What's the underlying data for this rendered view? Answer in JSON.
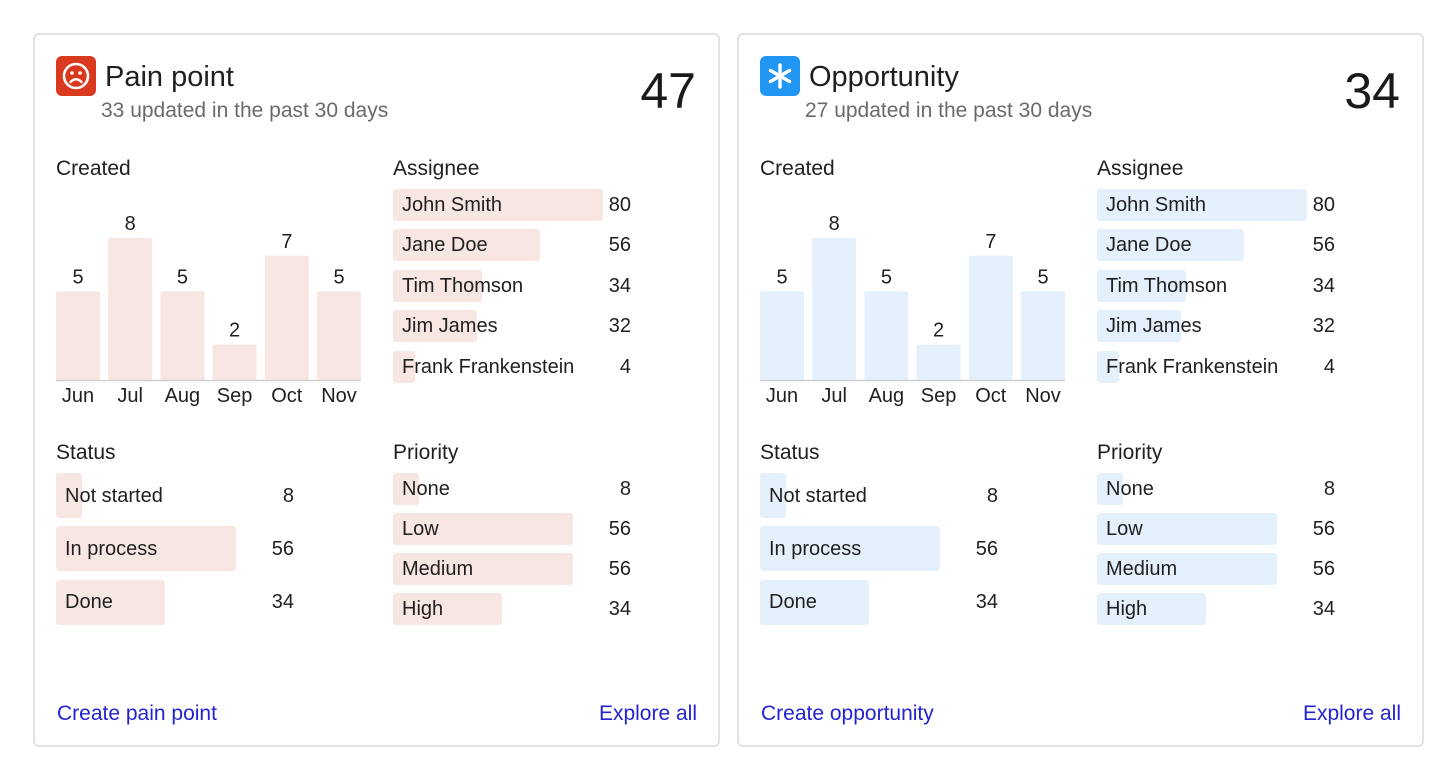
{
  "colors": {
    "pain_accent": "#d93a1f",
    "pain_bar": "#f8e6e3",
    "opp_accent": "#2196f3",
    "opp_bar": "#e4f1fd",
    "link": "#2323d1"
  },
  "cards": [
    {
      "id": "pain",
      "icon": "sad-face-icon",
      "title": "Pain point",
      "subtitle": "33 updated in the past 30 days",
      "total": "47",
      "created_label": "Created",
      "assignee_label": "Assignee",
      "status_label": "Status",
      "priority_label": "Priority",
      "chart_data": {
        "type": "bar",
        "title": "Created",
        "categories": [
          "Jun",
          "Jul",
          "Aug",
          "Sep",
          "Oct",
          "Nov"
        ],
        "values": [
          5,
          8,
          5,
          2,
          7,
          5
        ],
        "value_labels": [
          "5",
          "8",
          "5",
          "2",
          "7",
          "5"
        ],
        "ylim": [
          0,
          8
        ]
      },
      "assignees": [
        {
          "name": "John Smith",
          "count": "80",
          "value": 80
        },
        {
          "name": "Jane Doe",
          "count": "56",
          "value": 56
        },
        {
          "name": "Tim Thomson",
          "count": "34",
          "value": 34
        },
        {
          "name": "Jim James",
          "count": "32",
          "value": 32
        },
        {
          "name": "Frank Frankenstein",
          "count": "4",
          "value": 4
        }
      ],
      "statuses": [
        {
          "name": "Not started",
          "count": "8",
          "value": 8
        },
        {
          "name": "In process",
          "count": "56",
          "value": 56
        },
        {
          "name": "Done",
          "count": "34",
          "value": 34
        }
      ],
      "priorities": [
        {
          "name": "None",
          "count": "8",
          "value": 8
        },
        {
          "name": "Low",
          "count": "56",
          "value": 56
        },
        {
          "name": "Medium",
          "count": "56",
          "value": 56
        },
        {
          "name": "High",
          "count": "34",
          "value": 34
        }
      ],
      "create_label": "Create pain point",
      "explore_label": "Explore all"
    },
    {
      "id": "opp",
      "icon": "asterisk-icon",
      "title": "Opportunity",
      "subtitle": "27 updated in the past 30 days",
      "total": "34",
      "created_label": "Created",
      "assignee_label": "Assignee",
      "status_label": "Status",
      "priority_label": "Priority",
      "chart_data": {
        "type": "bar",
        "title": "Created",
        "categories": [
          "Jun",
          "Jul",
          "Aug",
          "Sep",
          "Oct",
          "Nov"
        ],
        "values": [
          5,
          8,
          5,
          2,
          7,
          5
        ],
        "value_labels": [
          "5",
          "8",
          "5",
          "2",
          "7",
          "5"
        ],
        "ylim": [
          0,
          8
        ]
      },
      "assignees": [
        {
          "name": "John Smith",
          "count": "80",
          "value": 80
        },
        {
          "name": "Jane Doe",
          "count": "56",
          "value": 56
        },
        {
          "name": "Tim Thomson",
          "count": "34",
          "value": 34
        },
        {
          "name": "Jim James",
          "count": "32",
          "value": 32
        },
        {
          "name": "Frank Frankenstein",
          "count": "4",
          "value": 4
        }
      ],
      "statuses": [
        {
          "name": "Not started",
          "count": "8",
          "value": 8
        },
        {
          "name": "In process",
          "count": "56",
          "value": 56
        },
        {
          "name": "Done",
          "count": "34",
          "value": 34
        }
      ],
      "priorities": [
        {
          "name": "None",
          "count": "8",
          "value": 8
        },
        {
          "name": "Low",
          "count": "56",
          "value": 56
        },
        {
          "name": "Medium",
          "count": "56",
          "value": 56
        },
        {
          "name": "High",
          "count": "34",
          "value": 34
        }
      ],
      "create_label": "Create opportunity",
      "explore_label": "Explore all"
    }
  ]
}
